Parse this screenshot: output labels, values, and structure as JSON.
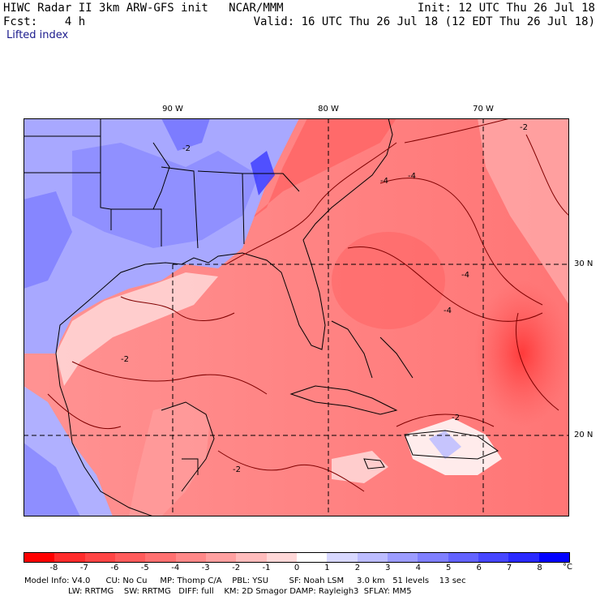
{
  "header": {
    "model": "HIWC Radar II 3km ARW-GFS init",
    "org": "NCAR/MMM",
    "init": "Init: 12 UTC Thu 26 Jul 18",
    "fcst_label": "Fcst:",
    "fcst_value": "4 h",
    "valid": "Valid: 16 UTC Thu 26 Jul 18 (12 EDT Thu 26 Jul 18)",
    "field": "Lifted index"
  },
  "map": {
    "lon_labels": [
      "90 W",
      "80 W",
      "70 W"
    ],
    "lat_labels": [
      "30 N",
      "20 N"
    ],
    "contour_labels": [
      "-2",
      "-2",
      "-4",
      "-4",
      "-4",
      "-4",
      "-2",
      "-2",
      "-2"
    ]
  },
  "colorbar": {
    "ticks": [
      "-8",
      "-7",
      "-6",
      "-5",
      "-4",
      "-3",
      "-2",
      "-1",
      "0",
      "1",
      "2",
      "3",
      "4",
      "5",
      "6",
      "7",
      "8"
    ],
    "unit": "°C",
    "colors": [
      "#ff0000",
      "#ff2b2b",
      "#ff4444",
      "#ff5b5b",
      "#ff7070",
      "#ff8888",
      "#ffa0a0",
      "#ffbcbc",
      "#ffd8d8",
      "#ffffff",
      "#d8d8ff",
      "#bcbcff",
      "#9c9cff",
      "#7f7fff",
      "#6262ff",
      "#4545ff",
      "#2828ff",
      "#0000ff"
    ]
  },
  "footer": {
    "line1": "Model Info: V4.0      CU: No Cu     MP: Thomp C/A    PBL: YSU        SF: Noah LSM     3.0 km   51 levels    13 sec",
    "line2": "                 LW: RRTMG    SW: RRTMG   DIFF: full    KM: 2D Smagor DAMP: Rayleigh3  SFLAY: MM5"
  }
}
